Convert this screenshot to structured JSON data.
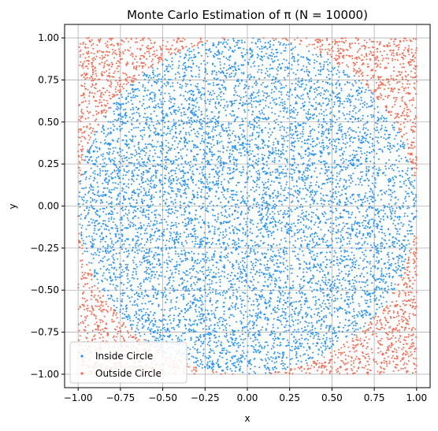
{
  "chart_data": {
    "type": "scatter",
    "title": "Monte Carlo Estimation of π (N = 10000)",
    "xlabel": "x",
    "ylabel": "y",
    "xlim": [
      -1.08,
      1.08
    ],
    "ylim": [
      -1.08,
      1.08
    ],
    "xticks": [
      -1.0,
      -0.75,
      -0.5,
      -0.25,
      0.0,
      0.25,
      0.5,
      0.75,
      1.0
    ],
    "yticks": [
      -1.0,
      -0.75,
      -0.5,
      -0.25,
      0.0,
      0.25,
      0.5,
      0.75,
      1.0
    ],
    "xtick_labels": [
      "−1.00",
      "−0.75",
      "−0.50",
      "−0.25",
      "0.00",
      "0.25",
      "0.50",
      "0.75",
      "1.00"
    ],
    "ytick_labels": [
      "−1.00",
      "−0.75",
      "−0.50",
      "−0.25",
      "0.00",
      "0.25",
      "0.50",
      "0.75",
      "1.00"
    ],
    "grid": true,
    "legend_position": "bottom-left",
    "n_points": 10000,
    "sample_region": {
      "x": [
        -1,
        1
      ],
      "y": [
        -1,
        1
      ]
    },
    "circle_radius": 1,
    "series": [
      {
        "name": "Inside Circle",
        "color": "#1e90ff",
        "rule": "x^2 + y^2 <= 1"
      },
      {
        "name": "Outside Circle",
        "color": "#ff6347",
        "rule": "x^2 + y^2 > 1"
      }
    ]
  }
}
